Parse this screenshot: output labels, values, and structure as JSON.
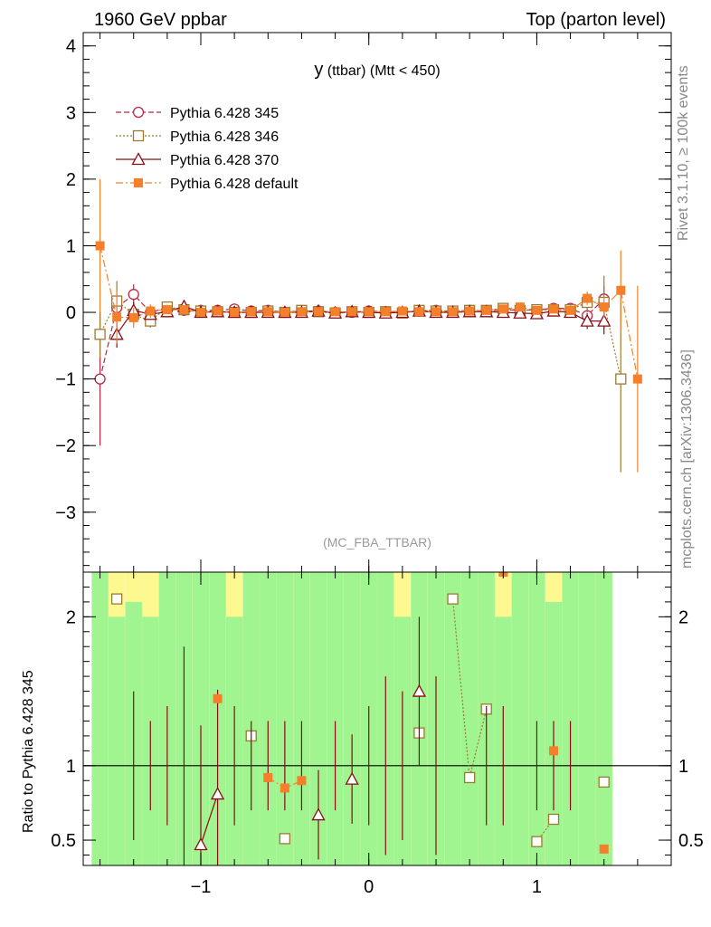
{
  "header": {
    "left": "1960 GeV ppbar",
    "right": "Top (parton level)"
  },
  "side_labels": {
    "rivet": "Rivet 3.1.10, ≥ 100k events",
    "mcplots": "mcplots.cern.ch [arXiv:1306.3436]"
  },
  "colors": {
    "p345": "#bd2641",
    "p346": "#9b7a32",
    "p370": "#8b0a14",
    "pdefault": "#f57f2a",
    "band_green": "#a0f590",
    "band_yellow": "#fdf890"
  },
  "chart_data": [
    {
      "type": "line",
      "title_main": "y",
      "title_rest": " (ttbar) (Mtt < 450)",
      "analysis_label": "(MC_FBA_TTBAR)",
      "xlim": [
        -1.7,
        1.8
      ],
      "ylim": [
        -3.9,
        4.2
      ],
      "x_ticks": [
        -1,
        0,
        1
      ],
      "x_tick_labels": [
        "−1",
        "0",
        "1"
      ],
      "y_ticks": [
        -3,
        -2,
        -1,
        0,
        1,
        2,
        3,
        4
      ],
      "y_tick_labels": [
        "−3",
        "−2",
        "−1",
        "0",
        "1",
        "2",
        "3",
        "4"
      ],
      "x": [
        -1.6,
        -1.5,
        -1.4,
        -1.3,
        -1.2,
        -1.1,
        -1.0,
        -0.9,
        -0.8,
        -0.7,
        -0.6,
        -0.5,
        -0.4,
        -0.3,
        -0.2,
        -0.1,
        0.0,
        0.1,
        0.2,
        0.3,
        0.4,
        0.5,
        0.6,
        0.7,
        0.8,
        0.9,
        1.0,
        1.1,
        1.2,
        1.3,
        1.4,
        1.5,
        1.6
      ],
      "series": [
        {
          "name": "Pythia 6.428 345",
          "key": "p345",
          "marker": "circle",
          "dash": "6,3",
          "values": [
            -1.0,
            0.07,
            0.27,
            0.0,
            0.07,
            0.03,
            0.03,
            0.03,
            0.05,
            0.02,
            0.03,
            0.0,
            0.02,
            0.02,
            0.0,
            0.0,
            0.02,
            0.01,
            0.0,
            0.02,
            0.03,
            0.01,
            0.03,
            0.01,
            0.04,
            0.03,
            0.04,
            0.06,
            0.06,
            -0.05,
            0.2,
            null,
            null
          ],
          "errors": [
            1.0,
            0.18,
            0.15,
            0.1,
            0.06,
            0.05,
            0.04,
            0.04,
            0.04,
            0.03,
            0.03,
            0.03,
            0.03,
            0.03,
            0.03,
            0.03,
            0.03,
            0.03,
            0.03,
            0.03,
            0.03,
            0.03,
            0.03,
            0.03,
            0.04,
            0.04,
            0.05,
            0.05,
            0.06,
            0.1,
            0.2,
            null,
            null
          ]
        },
        {
          "name": "Pythia 6.428 346",
          "key": "p346",
          "marker": "square",
          "dash": "2,2",
          "values": [
            -0.33,
            0.17,
            -0.03,
            -0.13,
            0.08,
            0.04,
            0.02,
            0.01,
            0.0,
            0.0,
            0.02,
            0.0,
            0.03,
            0.01,
            -0.01,
            0.01,
            0.0,
            0.01,
            -0.01,
            0.03,
            0.02,
            0.02,
            0.03,
            0.03,
            0.06,
            0.03,
            0.04,
            0.04,
            0.04,
            0.15,
            0.15,
            -1.0,
            null
          ],
          "errors": [
            0.35,
            0.3,
            0.15,
            0.1,
            0.07,
            0.05,
            0.04,
            0.04,
            0.04,
            0.03,
            0.03,
            0.03,
            0.03,
            0.03,
            0.03,
            0.03,
            0.03,
            0.03,
            0.03,
            0.03,
            0.03,
            0.03,
            0.03,
            0.03,
            0.04,
            0.04,
            0.05,
            0.05,
            0.07,
            0.15,
            0.4,
            1.4,
            null
          ]
        },
        {
          "name": "Pythia 6.428 370",
          "key": "p370",
          "marker": "triangle",
          "dash": "",
          "values": [
            null,
            -0.33,
            0.03,
            -0.03,
            0.01,
            0.09,
            0.0,
            0.01,
            0.0,
            0.0,
            0.0,
            0.0,
            0.0,
            0.02,
            -0.01,
            0.01,
            0.0,
            -0.01,
            0.0,
            0.02,
            0.0,
            0.0,
            0.01,
            0.01,
            0.0,
            -0.01,
            -0.02,
            0.02,
            0.0,
            -0.13,
            -0.13,
            null,
            null
          ],
          "errors": [
            null,
            0.2,
            0.12,
            0.08,
            0.06,
            0.05,
            0.04,
            0.04,
            0.03,
            0.03,
            0.03,
            0.03,
            0.03,
            0.03,
            0.03,
            0.03,
            0.03,
            0.03,
            0.03,
            0.03,
            0.03,
            0.03,
            0.03,
            0.03,
            0.04,
            0.04,
            0.05,
            0.05,
            0.07,
            0.12,
            0.2,
            null,
            null
          ]
        },
        {
          "name": "Pythia 6.428 default",
          "key": "pdefault",
          "marker": "fsquare",
          "dash": "8,3,2,3",
          "values": [
            1.0,
            -0.07,
            -0.08,
            0.02,
            0.04,
            0.04,
            0.0,
            0.02,
            0.0,
            0.01,
            0.01,
            0.0,
            0.01,
            0.01,
            0.01,
            0.01,
            0.01,
            0.01,
            0.02,
            0.01,
            0.01,
            0.01,
            0.02,
            0.03,
            0.05,
            0.08,
            0.03,
            0.05,
            0.03,
            0.21,
            0.08,
            0.33,
            -1.0
          ],
          "errors": [
            1.0,
            0.4,
            0.15,
            0.1,
            0.06,
            0.05,
            0.04,
            0.04,
            0.04,
            0.03,
            0.03,
            0.03,
            0.03,
            0.03,
            0.03,
            0.03,
            0.03,
            0.03,
            0.03,
            0.03,
            0.03,
            0.03,
            0.03,
            0.03,
            0.04,
            0.04,
            0.05,
            0.05,
            0.06,
            0.1,
            0.15,
            0.6,
            1.4
          ]
        }
      ]
    },
    {
      "type": "line",
      "ylabel": "Ratio to Pythia 6.428 345",
      "reference": "Pythia 6.428 345",
      "ylim": [
        0.33,
        2.3
      ],
      "reference_line": 1,
      "y_ticks": [
        0.5,
        1,
        2
      ],
      "y_tick_labels": [
        "0.5",
        "1",
        "2"
      ],
      "x_ticks": [
        -1,
        0,
        1
      ],
      "x_tick_labels": [
        "−1",
        "0",
        "1"
      ],
      "x": [
        -1.6,
        -1.5,
        -1.4,
        -1.3,
        -1.2,
        -1.1,
        -1.0,
        -0.9,
        -0.8,
        -0.7,
        -0.6,
        -0.5,
        -0.4,
        -0.3,
        -0.2,
        -0.1,
        0.0,
        0.1,
        0.2,
        0.3,
        0.4,
        0.5,
        0.6,
        0.7,
        0.8,
        0.9,
        1.0,
        1.1,
        1.2,
        1.3,
        1.4,
        1.5,
        1.6
      ],
      "band_green": [
        [
          0.33,
          2.3
        ],
        [
          0.33,
          2.0
        ],
        [
          0.33,
          2.1
        ],
        [
          0.33,
          2.0
        ],
        [
          0.33,
          2.3
        ],
        [
          0.33,
          2.3
        ],
        [
          0.33,
          2.3
        ],
        [
          0.33,
          2.3
        ],
        [
          0.33,
          2.0
        ],
        [
          0.33,
          2.3
        ],
        [
          0.33,
          2.3
        ],
        [
          0.33,
          2.3
        ],
        [
          0.33,
          2.3
        ],
        [
          0.33,
          2.3
        ],
        [
          0.33,
          2.3
        ],
        [
          0.33,
          2.3
        ],
        [
          0.33,
          2.3
        ],
        [
          0.33,
          2.3
        ],
        [
          0.33,
          2.0
        ],
        [
          0.33,
          2.3
        ],
        [
          0.33,
          2.3
        ],
        [
          0.33,
          2.3
        ],
        [
          0.33,
          2.3
        ],
        [
          0.33,
          2.3
        ],
        [
          0.33,
          2.0
        ],
        [
          0.33,
          2.3
        ],
        [
          0.33,
          2.3
        ],
        [
          0.33,
          2.1
        ],
        [
          0.33,
          2.3
        ],
        [
          0.33,
          2.3
        ],
        [
          0.33,
          2.3
        ],
        null,
        null
      ],
      "band_yellow": [
        [
          0.33,
          2.3
        ],
        [
          0.33,
          2.3
        ],
        [
          0.33,
          2.3
        ],
        [
          0.33,
          2.3
        ],
        [
          0.33,
          2.3
        ],
        [
          0.33,
          2.3
        ],
        [
          0.33,
          2.3
        ],
        [
          0.33,
          2.3
        ],
        [
          0.33,
          2.3
        ],
        [
          0.33,
          2.3
        ],
        [
          0.33,
          2.3
        ],
        [
          0.33,
          2.3
        ],
        [
          0.33,
          2.3
        ],
        [
          0.33,
          2.3
        ],
        [
          0.33,
          2.3
        ],
        [
          0.33,
          2.3
        ],
        [
          0.33,
          2.3
        ],
        [
          0.33,
          2.3
        ],
        [
          0.33,
          2.3
        ],
        [
          0.33,
          2.3
        ],
        [
          0.33,
          2.3
        ],
        [
          0.33,
          2.3
        ],
        [
          0.33,
          2.3
        ],
        [
          0.33,
          2.3
        ],
        [
          0.33,
          2.3
        ],
        [
          0.33,
          2.3
        ],
        [
          0.33,
          2.3
        ],
        [
          0.33,
          2.3
        ],
        [
          0.33,
          2.3
        ],
        [
          0.33,
          2.3
        ],
        [
          0.33,
          2.3
        ],
        null,
        null
      ],
      "series": [
        {
          "key": "p346",
          "marker": "square",
          "dash": "2,2",
          "values": [
            null,
            2.12,
            null,
            null,
            null,
            null,
            null,
            null,
            null,
            1.2,
            null,
            0.51,
            null,
            null,
            null,
            null,
            null,
            null,
            null,
            1.22,
            null,
            2.12,
            0.92,
            1.38,
            null,
            null,
            0.49,
            0.64,
            null,
            null,
            0.89,
            null,
            null
          ]
        },
        {
          "key": "p370",
          "marker": "triangle",
          "dash": "",
          "values": [
            null,
            null,
            null,
            null,
            null,
            null,
            0.47,
            0.81,
            null,
            null,
            null,
            null,
            null,
            0.67,
            null,
            0.91,
            null,
            null,
            null,
            1.5,
            null,
            null,
            null,
            null,
            null,
            null,
            null,
            null,
            null,
            null,
            null,
            null,
            null
          ],
          "errors": [
            null,
            null,
            0.5,
            0.3,
            0.4,
            0.8,
            0.8,
            0.7,
            0.4,
            0.3,
            0.3,
            0.3,
            0.3,
            0.3,
            0.3,
            0.3,
            0.4,
            0.6,
            0.5,
            0.5,
            0.6,
            null,
            null,
            0.4,
            0.4,
            null,
            0.3,
            0.3,
            0.3,
            null,
            null,
            null,
            null
          ]
        },
        {
          "key": "pdefault",
          "marker": "fsquare",
          "dash": "8,3,2,3",
          "values": [
            null,
            null,
            null,
            null,
            null,
            null,
            null,
            1.45,
            null,
            null,
            0.92,
            0.85,
            0.9,
            null,
            null,
            null,
            null,
            null,
            null,
            null,
            null,
            null,
            null,
            null,
            2.3,
            null,
            null,
            1.1,
            null,
            null,
            0.44,
            null,
            null
          ]
        }
      ]
    }
  ]
}
